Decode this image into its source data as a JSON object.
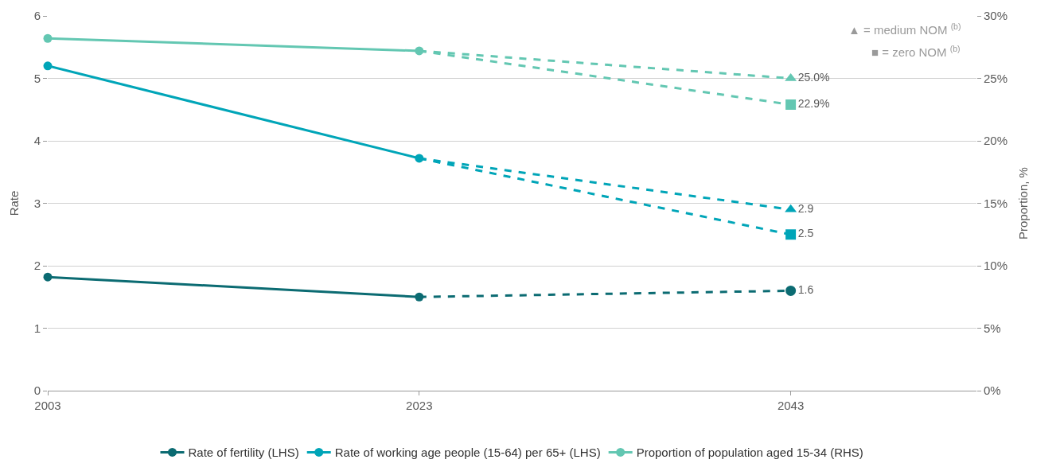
{
  "chart_data": {
    "type": "line",
    "ylabel": "Rate",
    "y2label": "Proportion, %",
    "xlim": [
      2003,
      2053
    ],
    "xticks": [
      2003,
      2023,
      2043
    ],
    "ylim": [
      0,
      6
    ],
    "yticks": [
      0,
      1,
      2,
      3,
      4,
      5,
      6
    ],
    "y2lim": [
      0,
      30
    ],
    "y2ticks": [
      {
        "value": 0,
        "label": "0%"
      },
      {
        "value": 5,
        "label": "5%"
      },
      {
        "value": 10,
        "label": "10%"
      },
      {
        "value": 15,
        "label": "15%"
      },
      {
        "value": 20,
        "label": "20%"
      },
      {
        "value": 25,
        "label": "25%"
      },
      {
        "value": 30,
        "label": "30%"
      }
    ],
    "grid": "y",
    "legend": "bottom",
    "annotations": [
      "▲ = medium NOM $^{(b)}$",
      "■ = zero NOM $^{(b)}$"
    ],
    "series": [
      {
        "name": "Rate of fertility (LHS)",
        "color": "#0b6b72",
        "x": [
          2003,
          2023
        ],
        "values": [
          1.82,
          1.5
        ],
        "marker": "circle",
        "line_style": "solid"
      },
      {
        "name": "Rate of working age people (15-64) per 65+ (LHS)",
        "color": "#00a5b8",
        "x": [
          2003,
          2023
        ],
        "values": [
          5.2,
          3.72
        ],
        "marker": "circle",
        "line_style": "solid"
      },
      {
        "name": "Proportion of population aged 15-34 (RHS)",
        "color": "#63c7b2",
        "x": [
          2003,
          2023
        ],
        "values": [
          28.2,
          27.2
        ],
        "marker": "circle",
        "line_style": "solid",
        "axis": "y2"
      },
      {
        "color": "#0b6b72",
        "x": [
          2023,
          2043
        ],
        "values": [
          1.5,
          1.6
        ],
        "marker": "none",
        "line_style": "dashed"
      },
      {
        "type": "scatter",
        "color": "#0b6b72",
        "x": [
          2043
        ],
        "values": [
          1.6
        ],
        "marker": "circle",
        "value_labels": [
          "1.6"
        ]
      },
      {
        "color": "#00a5b8",
        "x": [
          2023,
          2043
        ],
        "values": [
          3.72,
          2.9
        ],
        "marker": "none",
        "line_style": "dashed"
      },
      {
        "color": "#00a5b8",
        "x": [
          2023,
          2043
        ],
        "values": [
          3.72,
          2.5
        ],
        "marker": "none",
        "line_style": "dashed"
      },
      {
        "color": "#63c7b2",
        "x": [
          2023,
          2043
        ],
        "values": [
          27.2,
          25.0
        ],
        "marker": "none",
        "line_style": "dashed",
        "axis": "y2"
      },
      {
        "color": "#63c7b2",
        "x": [
          2023,
          2043
        ],
        "values": [
          27.2,
          22.9
        ],
        "marker": "none",
        "line_style": "dashed",
        "axis": "y2"
      },
      {
        "type": "scatter",
        "color": "#00a5b8",
        "x": [
          2043
        ],
        "values": [
          2.9
        ],
        "marker": "triangle",
        "value_labels": [
          "2.9"
        ]
      },
      {
        "type": "scatter",
        "color": "#00a5b8",
        "x": [
          2043
        ],
        "values": [
          2.5
        ],
        "marker": "square",
        "value_labels": [
          "2.5"
        ]
      },
      {
        "type": "scatter",
        "color": "#63c7b2",
        "x": [
          2043
        ],
        "values": [
          25.0
        ],
        "marker": "triangle",
        "value_labels": [
          "25.0%"
        ],
        "axis": "y2"
      },
      {
        "type": "scatter",
        "color": "#63c7b2",
        "x": [
          2043
        ],
        "values": [
          22.9
        ],
        "marker": "square",
        "value_labels": [
          "22.9%"
        ],
        "axis": "y2"
      }
    ]
  }
}
